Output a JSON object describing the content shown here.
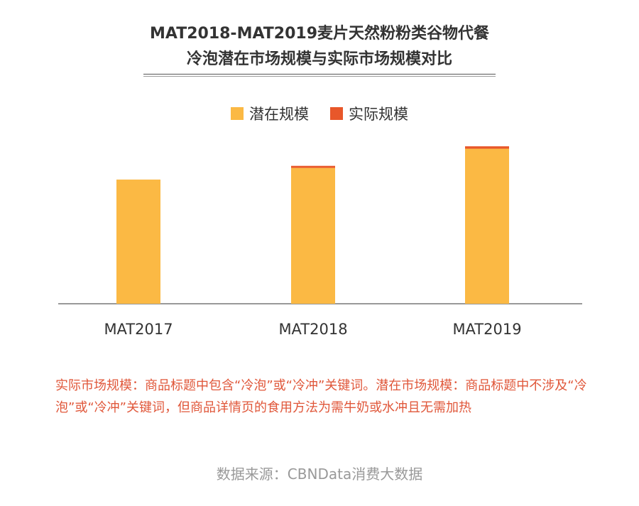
{
  "title_line1": "MAT2018-MAT2019麦片天然粉粉类谷物代餐",
  "title_line2": "冷泡潜在市场规模与实际市场规模对比",
  "note": "实际市场规模：商品标题中包含“冷泡”或“冷冲”关键词。潜在市场规模：商品标题中不涉及“冷泡”或“冷冲”关键词，但商品详情页的食用方法为需牛奶或水冲且无需加热",
  "source": "数据来源：CBNData消费大数据",
  "colors": {
    "potential": "#fbb944",
    "actual": "#e8572a",
    "axis": "#333333"
  },
  "chart_data": {
    "type": "bar",
    "stacked": true,
    "categories": [
      "MAT2017",
      "MAT2018",
      "MAT2019"
    ],
    "series": [
      {
        "name": "潜在规模",
        "values": [
          181,
          198,
          226
        ]
      },
      {
        "name": "实际规模",
        "values": [
          0,
          3,
          3.5
        ]
      }
    ],
    "ylim": [
      0,
      240
    ],
    "legend": "top-center",
    "grid": false,
    "y_axis_visible": false
  }
}
